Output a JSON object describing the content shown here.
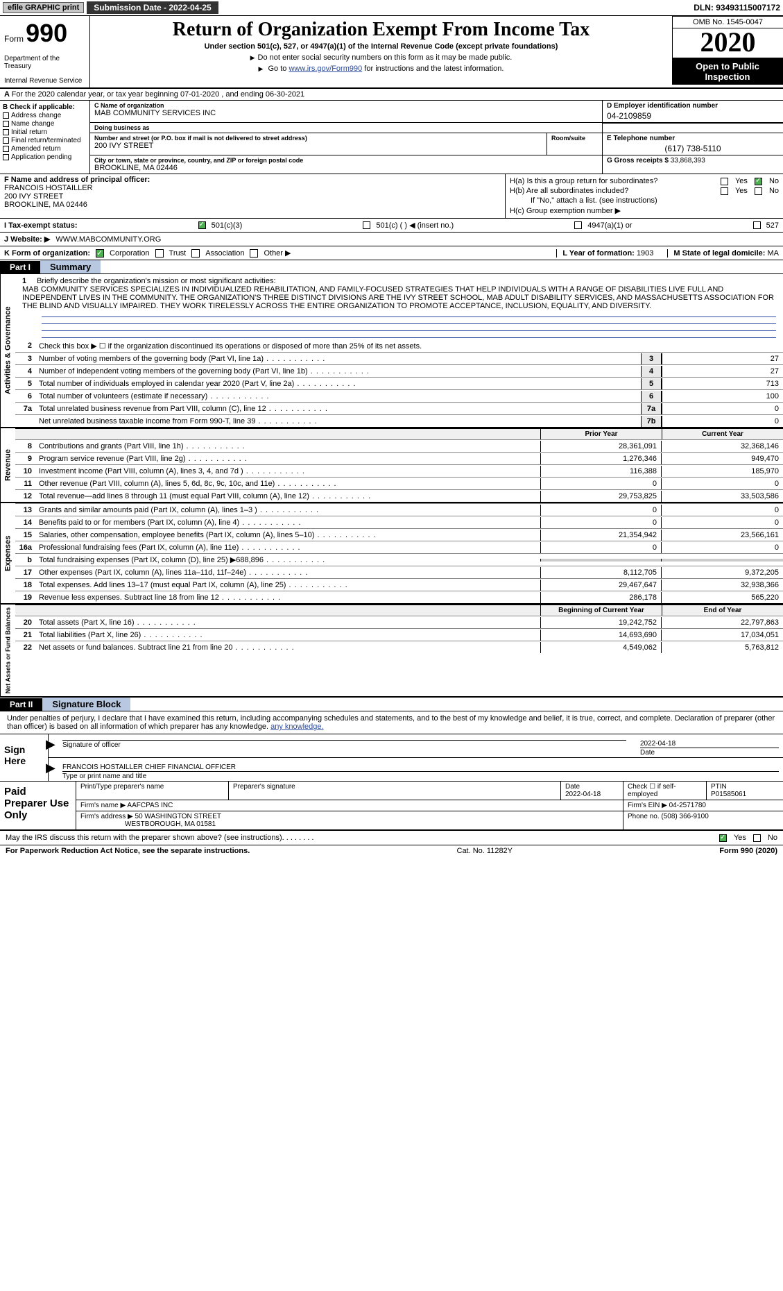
{
  "topbar": {
    "efile": "efile GRAPHIC print",
    "submission_label": "Submission Date - 2022-04-25",
    "dln_label": "DLN: 93493115007172"
  },
  "header": {
    "form_word": "Form",
    "form_number": "990",
    "dept1": "Department of the Treasury",
    "dept2": "Internal Revenue Service",
    "title": "Return of Organization Exempt From Income Tax",
    "subtitle": "Under section 501(c), 527, or 4947(a)(1) of the Internal Revenue Code (except private foundations)",
    "instr1": "Do not enter social security numbers on this form as it may be made public.",
    "instr2_pre": "Go to ",
    "instr2_link": "www.irs.gov/Form990",
    "instr2_post": " for instructions and the latest information.",
    "omb": "OMB No. 1545-0047",
    "taxyear": "2020",
    "open_pub": "Open to Public Inspection"
  },
  "line_a": {
    "text": "For the 2020 calendar year, or tax year beginning 07-01-2020   , and ending 06-30-2021"
  },
  "col_b": {
    "label": "B Check if applicable:",
    "opts": [
      "Address change",
      "Name change",
      "Initial return",
      "Final return/terminated",
      "Amended return",
      "Application pending"
    ]
  },
  "col_c": {
    "name_hint": "C Name of organization",
    "name": "MAB COMMUNITY SERVICES INC",
    "dba_hint": "Doing business as",
    "dba": "",
    "street_hint": "Number and street (or P.O. box if mail is not delivered to street address)",
    "street": "200 IVY STREET",
    "room_hint": "Room/suite",
    "city_hint": "City or town, state or province, country, and ZIP or foreign postal code",
    "city": "BROOKLINE, MA  02446"
  },
  "col_d": {
    "ein_hint": "D Employer identification number",
    "ein": "04-2109859",
    "tel_hint": "E Telephone number",
    "tel": "(617) 738-5110",
    "gross_hint": "G Gross receipts $",
    "gross": "33,868,393"
  },
  "col_f": {
    "hint": "F  Name and address of principal officer:",
    "name": "FRANCOIS HOSTAILLER",
    "street": "200 IVY STREET",
    "city": "BROOKLINE, MA  02446"
  },
  "col_h": {
    "ha": "H(a)  Is this a group return for subordinates?",
    "hb": "H(b)  Are all subordinates included?",
    "hb_note": "If \"No,\" attach a list. (see instructions)",
    "hc": "H(c)  Group exemption number ▶",
    "yes": "Yes",
    "no": "No"
  },
  "line_i": {
    "label": "I    Tax-exempt status:",
    "o1": "501(c)(3)",
    "o2": "501(c) (  ) ◀ (insert no.)",
    "o3": "4947(a)(1) or",
    "o4": "527"
  },
  "line_j": {
    "label": "J   Website: ▶",
    "value": "WWW.MABCOMMUNITY.ORG"
  },
  "line_k": {
    "label": "K Form of organization:",
    "o1": "Corporation",
    "o2": "Trust",
    "o3": "Association",
    "o4": "Other ▶",
    "l_label": "L Year of formation:",
    "l_val": "1903",
    "m_label": "M State of legal domicile:",
    "m_val": "MA"
  },
  "part1": {
    "tag": "Part I",
    "title": "Summary",
    "vbar_ag": "Activities & Governance",
    "vbar_rev": "Revenue",
    "vbar_exp": "Expenses",
    "vbar_na": "Net Assets or Fund Balances",
    "q1_label": "1",
    "q1_text": "Briefly describe the organization's mission or most significant activities:",
    "q1_body": "MAB COMMUNITY SERVICES SPECIALIZES IN INDIVIDUALIZED REHABILITATION, AND FAMILY-FOCUSED STRATEGIES THAT HELP INDIVIDUALS WITH A RANGE OF DISABILITIES LIVE FULL AND INDEPENDENT LIVES IN THE COMMUNITY. THE ORGANIZATION'S THREE DISTINCT DIVISIONS ARE THE IVY STREET SCHOOL, MAB ADULT DISABILITY SERVICES, AND MASSACHUSETTS ASSOCIATION FOR THE BLIND AND VISUALLY IMPAIRED. THEY WORK TIRELESSLY ACROSS THE ENTIRE ORGANIZATION TO PROMOTE ACCEPTANCE, INCLUSION, EQUALITY, AND DIVERSITY.",
    "q2": "Check this box ▶ ☐  if the organization discontinued its operations or disposed of more than 25% of its net assets.",
    "rows_ag": [
      {
        "n": "3",
        "d": "Number of voting members of the governing body (Part VI, line 1a)",
        "b": "3",
        "v": "27"
      },
      {
        "n": "4",
        "d": "Number of independent voting members of the governing body (Part VI, line 1b)",
        "b": "4",
        "v": "27"
      },
      {
        "n": "5",
        "d": "Total number of individuals employed in calendar year 2020 (Part V, line 2a)",
        "b": "5",
        "v": "713"
      },
      {
        "n": "6",
        "d": "Total number of volunteers (estimate if necessary)",
        "b": "6",
        "v": "100"
      },
      {
        "n": "7a",
        "d": "Total unrelated business revenue from Part VIII, column (C), line 12",
        "b": "7a",
        "v": "0"
      },
      {
        "n": "",
        "d": "Net unrelated business taxable income from Form 990-T, line 39",
        "b": "7b",
        "v": "0"
      }
    ],
    "hdr_b": "b",
    "col_prior": "Prior Year",
    "col_current": "Current Year",
    "rows_rev": [
      {
        "n": "8",
        "d": "Contributions and grants (Part VIII, line 1h)",
        "v1": "28,361,091",
        "v2": "32,368,146"
      },
      {
        "n": "9",
        "d": "Program service revenue (Part VIII, line 2g)",
        "v1": "1,276,346",
        "v2": "949,470"
      },
      {
        "n": "10",
        "d": "Investment income (Part VIII, column (A), lines 3, 4, and 7d )",
        "v1": "116,388",
        "v2": "185,970"
      },
      {
        "n": "11",
        "d": "Other revenue (Part VIII, column (A), lines 5, 6d, 8c, 9c, 10c, and 11e)",
        "v1": "0",
        "v2": "0"
      },
      {
        "n": "12",
        "d": "Total revenue—add lines 8 through 11 (must equal Part VIII, column (A), line 12)",
        "v1": "29,753,825",
        "v2": "33,503,586"
      }
    ],
    "rows_exp": [
      {
        "n": "13",
        "d": "Grants and similar amounts paid (Part IX, column (A), lines 1–3 )",
        "v1": "0",
        "v2": "0"
      },
      {
        "n": "14",
        "d": "Benefits paid to or for members (Part IX, column (A), line 4)",
        "v1": "0",
        "v2": "0"
      },
      {
        "n": "15",
        "d": "Salaries, other compensation, employee benefits (Part IX, column (A), lines 5–10)",
        "v1": "21,354,942",
        "v2": "23,566,161"
      },
      {
        "n": "16a",
        "d": "Professional fundraising fees (Part IX, column (A), line 11e)",
        "v1": "0",
        "v2": "0"
      },
      {
        "n": "b",
        "d": "Total fundraising expenses (Part IX, column (D), line 25) ▶688,896",
        "v1": "",
        "v2": "",
        "shade": true
      },
      {
        "n": "17",
        "d": "Other expenses (Part IX, column (A), lines 11a–11d, 11f–24e)",
        "v1": "8,112,705",
        "v2": "9,372,205"
      },
      {
        "n": "18",
        "d": "Total expenses. Add lines 13–17 (must equal Part IX, column (A), line 25)",
        "v1": "29,467,647",
        "v2": "32,938,366"
      },
      {
        "n": "19",
        "d": "Revenue less expenses. Subtract line 18 from line 12",
        "v1": "286,178",
        "v2": "565,220"
      }
    ],
    "col_begin": "Beginning of Current Year",
    "col_end": "End of Year",
    "rows_na": [
      {
        "n": "20",
        "d": "Total assets (Part X, line 16)",
        "v1": "19,242,752",
        "v2": "22,797,863"
      },
      {
        "n": "21",
        "d": "Total liabilities (Part X, line 26)",
        "v1": "14,693,690",
        "v2": "17,034,051"
      },
      {
        "n": "22",
        "d": "Net assets or fund balances. Subtract line 21 from line 20",
        "v1": "4,549,062",
        "v2": "5,763,812"
      }
    ]
  },
  "part2": {
    "tag": "Part II",
    "title": "Signature Block",
    "intro": "Under penalties of perjury, I declare that I have examined this return, including accompanying schedules and statements, and to the best of my knowledge and belief, it is true, correct, and complete. Declaration of preparer (other than officer) is based on all information of which preparer has any knowledge.",
    "sign_here": "Sign Here",
    "sig_officer": "Signature of officer",
    "date_label": "Date",
    "date_val": "2022-04-18",
    "name_title": "FRANCOIS HOSTAILLER  CHIEF FINANCIAL OFFICER",
    "name_title_hint": "Type or print name and title",
    "paid": "Paid Preparer Use Only",
    "pt_name_h": "Print/Type preparer's name",
    "pt_sig_h": "Preparer's signature",
    "pt_date_h": "Date",
    "pt_date": "2022-04-18",
    "pt_check": "Check ☐ if self-employed",
    "ptin_h": "PTIN",
    "ptin": "P01585061",
    "firm_name_h": "Firm's name    ▶",
    "firm_name": "AAFCPAS INC",
    "firm_ein_h": "Firm's EIN ▶",
    "firm_ein": "04-2571780",
    "firm_addr_h": "Firm's address ▶",
    "firm_addr1": "50 WASHINGTON STREET",
    "firm_addr2": "WESTBOROUGH, MA  01581",
    "phone_h": "Phone no.",
    "phone": "(508) 366-9100",
    "discuss": "May the IRS discuss this return with the preparer shown above? (see instructions)",
    "yes": "Yes",
    "no": "No"
  },
  "footer": {
    "left": "For Paperwork Reduction Act Notice, see the separate instructions.",
    "mid": "Cat. No. 11282Y",
    "right": "Form 990 (2020)"
  }
}
